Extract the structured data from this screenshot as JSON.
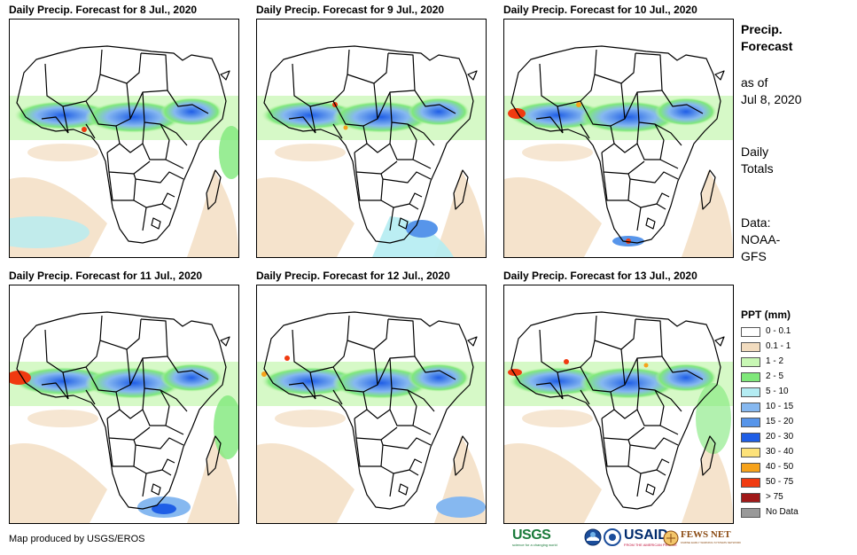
{
  "panels": [
    {
      "title": "Daily Precip. Forecast for 8 Jul., 2020"
    },
    {
      "title": "Daily Precip. Forecast for 9 Jul., 2020"
    },
    {
      "title": "Daily Precip. Forecast for 10 Jul., 2020"
    },
    {
      "title": "Daily Precip. Forecast for 11 Jul., 2020"
    },
    {
      "title": "Daily Precip. Forecast for 12 Jul., 2020"
    },
    {
      "title": "Daily Precip. Forecast for 13 Jul., 2020"
    }
  ],
  "side": {
    "heading_line1": "Precip.",
    "heading_line2": "Forecast",
    "asof_line1": "as of",
    "asof_line2": "Jul 8, 2020",
    "daily_line1": "Daily",
    "daily_line2": "Totals",
    "data_line1": "Data:",
    "data_line2": "NOAA-",
    "data_line3": "GFS"
  },
  "legend": {
    "title": "PPT (mm)",
    "items": [
      {
        "label": "0 - 0.1",
        "color": "#ffffff"
      },
      {
        "label": "0.1 - 1",
        "color": "#f2dcbf"
      },
      {
        "label": "1 - 2",
        "color": "#c8f7b4"
      },
      {
        "label": "2 - 5",
        "color": "#7fe87a"
      },
      {
        "label": "5 - 10",
        "color": "#b4ecf2"
      },
      {
        "label": "10 - 15",
        "color": "#86b8f0"
      },
      {
        "label": "15 - 20",
        "color": "#5795ea"
      },
      {
        "label": "20 - 30",
        "color": "#1f5ee6"
      },
      {
        "label": "30 - 40",
        "color": "#fde27a"
      },
      {
        "label": "40 - 50",
        "color": "#f6a21a"
      },
      {
        "label": "50 - 75",
        "color": "#f03a10"
      },
      {
        "label": "> 75",
        "color": "#a01818"
      },
      {
        "label": "No Data",
        "color": "#999999"
      }
    ]
  },
  "footer": {
    "credit": "Map produced by USGS/EROS"
  },
  "logos": {
    "usgs": "USGS",
    "usgs_tagline": "science for a changing world",
    "usaid": "USAID",
    "usaid_tagline": "FROM THE AMERICAN PEOPLE",
    "fews": "FEWS NET",
    "fews_tagline": "FAMINE EARLY WARNING SYSTEMS NETWORK"
  }
}
